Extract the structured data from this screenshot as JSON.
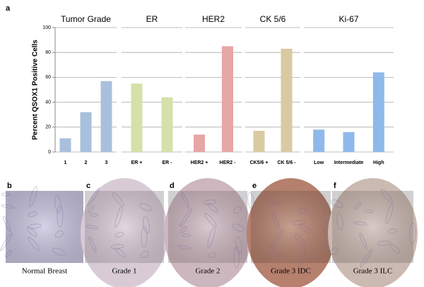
{
  "panel_label": "a",
  "chart_data": [
    {
      "type": "bar",
      "title": "Tumor Grade",
      "y_label": "Percent QSOX1 Positive Cells",
      "categories": [
        "1",
        "2",
        "3"
      ],
      "values": [
        11,
        32,
        57
      ],
      "color": "#a9c0dd",
      "ylim": [
        0,
        100
      ],
      "yticks": [
        0,
        20,
        40,
        60,
        80,
        100
      ],
      "grid": true
    },
    {
      "type": "bar",
      "title": "ER",
      "categories": [
        "ER +",
        "ER -"
      ],
      "values": [
        55,
        44
      ],
      "color": "#d4e1a9",
      "ylim": [
        0,
        100
      ],
      "yticks": [
        0,
        20,
        40,
        60,
        80,
        100
      ],
      "grid": true
    },
    {
      "type": "bar",
      "title": "HER2",
      "categories": [
        "HER2 +",
        "HER2 -"
      ],
      "values": [
        14,
        85
      ],
      "color": "#e6a6a6",
      "ylim": [
        0,
        100
      ],
      "yticks": [
        0,
        20,
        40,
        60,
        80,
        100
      ],
      "grid": true
    },
    {
      "type": "bar",
      "title": "CK 5/6",
      "categories": [
        "CK5/6 +",
        "CK 5/6 -"
      ],
      "values": [
        17,
        83
      ],
      "color": "#d9caa2",
      "ylim": [
        0,
        100
      ],
      "yticks": [
        0,
        20,
        40,
        60,
        80,
        100
      ],
      "grid": true
    },
    {
      "type": "bar",
      "title": "Ki-67",
      "categories": [
        "Low",
        "Intermediate",
        "High"
      ],
      "values": [
        18,
        16,
        64
      ],
      "color": "#8fb9ea",
      "ylim": [
        0,
        100
      ],
      "yticks": [
        0,
        20,
        40,
        60,
        80,
        100
      ],
      "grid": true
    }
  ],
  "image_panels": [
    {
      "label": "b",
      "caption": "Normal Breast"
    },
    {
      "label": "c",
      "caption": "Grade 1"
    },
    {
      "label": "d",
      "caption": "Grade 2"
    },
    {
      "label": "e",
      "caption": "Grade 3 IDC"
    },
    {
      "label": "f",
      "caption": "Grade 3 ILC"
    }
  ]
}
